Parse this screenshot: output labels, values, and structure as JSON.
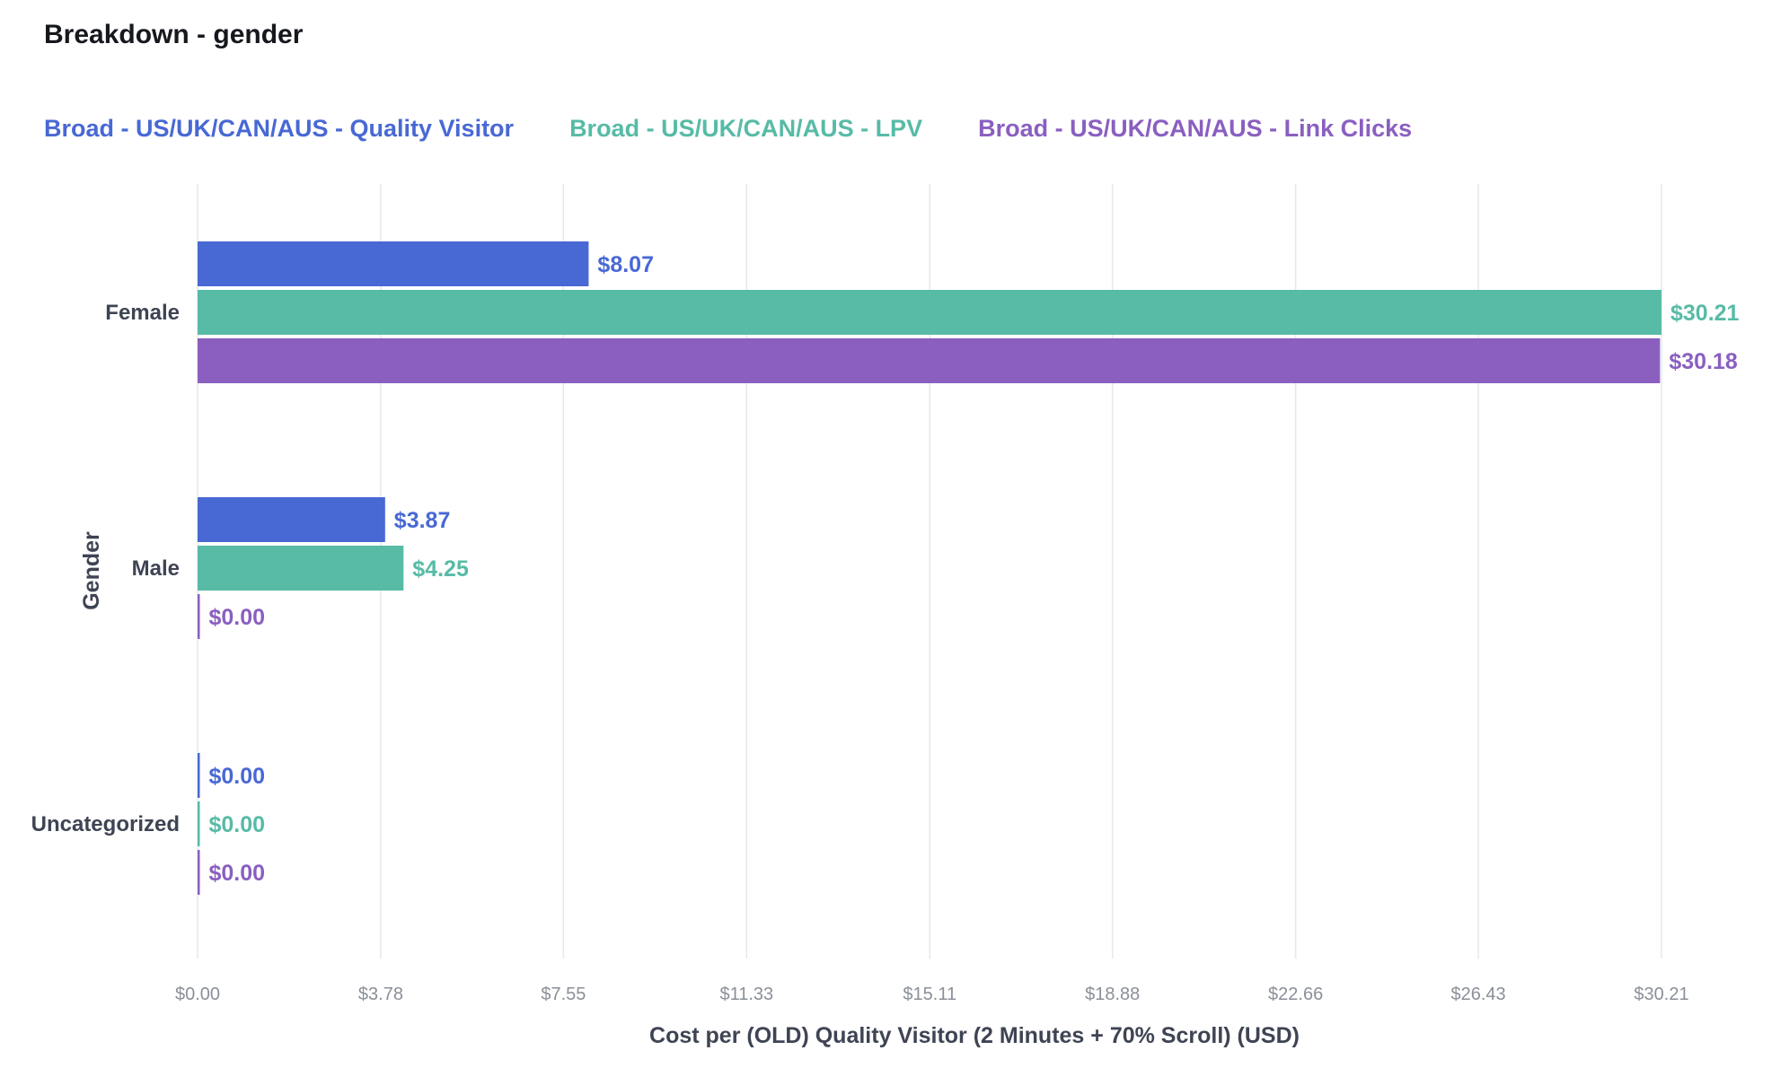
{
  "title": "Breakdown - gender",
  "chart_data": {
    "type": "bar",
    "orientation": "horizontal",
    "categories": [
      "Female",
      "Male",
      "Uncategorized"
    ],
    "series": [
      {
        "name": "Broad - US/UK/CAN/AUS - Quality Visitor",
        "color": "#4868d4",
        "values": [
          8.07,
          3.87,
          0.0
        ],
        "labels": [
          "$8.07",
          "$3.87",
          "$0.00"
        ]
      },
      {
        "name": "Broad - US/UK/CAN/AUS - LPV",
        "color": "#57bba6",
        "values": [
          30.21,
          4.25,
          0.0
        ],
        "labels": [
          "$30.21",
          "$4.25",
          "$0.00"
        ]
      },
      {
        "name": "Broad - US/UK/CAN/AUS - Link Clicks",
        "color": "#8a5fc0",
        "values": [
          30.18,
          0.0,
          0.0
        ],
        "labels": [
          "$30.18",
          "$0.00",
          "$0.00"
        ]
      }
    ],
    "xlabel": "Cost per (OLD) Quality Visitor (2 Minutes + 70% Scroll) (USD)",
    "ylabel": "Gender",
    "xlim": [
      0,
      30.21
    ],
    "xticks": [
      0,
      3.78,
      7.55,
      11.33,
      15.11,
      18.88,
      22.66,
      26.43,
      30.21
    ],
    "xtick_labels": [
      "$0.00",
      "$3.78",
      "$7.55",
      "$11.33",
      "$15.11",
      "$18.88",
      "$22.66",
      "$26.43",
      "$30.21"
    ],
    "grid": true,
    "legend_position": "top-left"
  }
}
